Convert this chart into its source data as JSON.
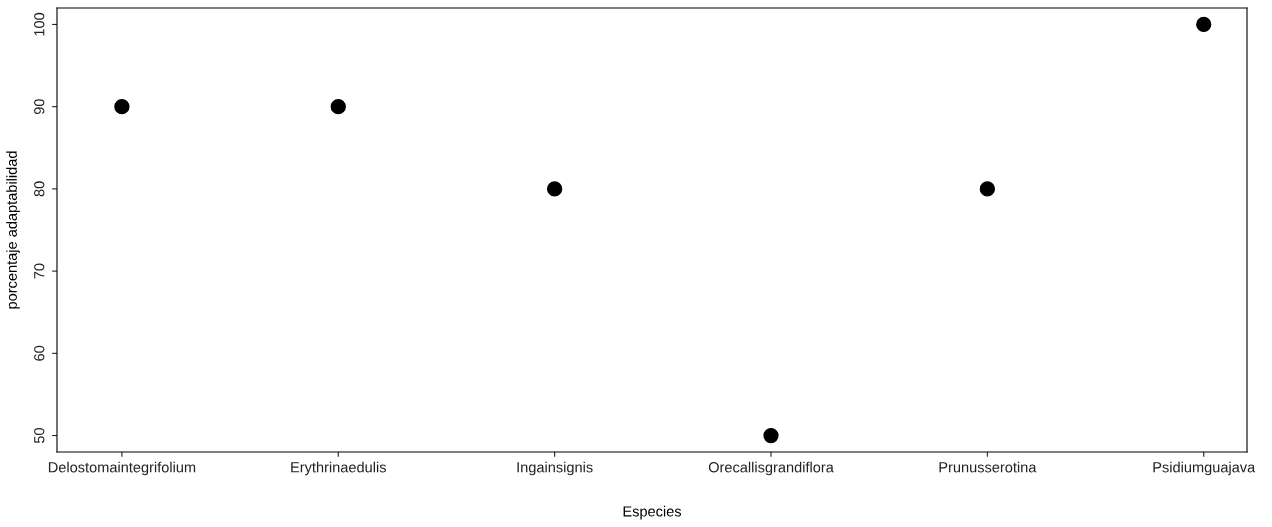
{
  "chart_data": {
    "type": "scatter",
    "xlabel": "Especies",
    "ylabel": "porcentaje adaptabilidad",
    "categories": [
      "Delostomaintegrifolium",
      "Erythrinaedulis",
      "Ingainsignis",
      "Orecallisgrandiflora",
      "Prunusserotina",
      "Psidiumguajava"
    ],
    "series": [
      {
        "color": "#000000",
        "values": [
          90,
          90,
          80,
          50,
          80,
          100
        ]
      }
    ],
    "ylim": [
      48,
      102
    ],
    "yticks": [
      50,
      60,
      70,
      80,
      90,
      100
    ],
    "marker": "circle",
    "grid": false,
    "legend": false
  }
}
